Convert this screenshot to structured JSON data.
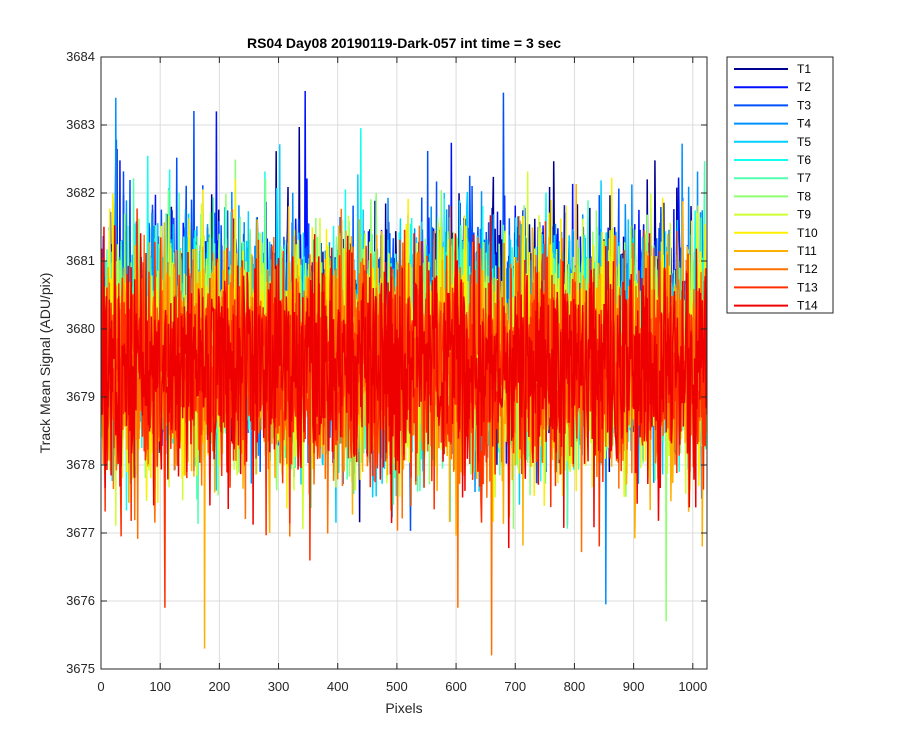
{
  "chart_data": {
    "type": "line",
    "title": "RS04 Day08 20190119-Dark-057 int time = 3 sec",
    "xlabel": "Pixels",
    "ylabel": "Track Mean Signal (ADU/pix)",
    "xlim": [
      0,
      1024
    ],
    "ylim": [
      3675,
      3684
    ],
    "xticks": [
      0,
      100,
      200,
      300,
      400,
      500,
      600,
      700,
      800,
      900,
      1000
    ],
    "yticks": [
      3675,
      3676,
      3677,
      3678,
      3679,
      3680,
      3681,
      3682,
      3683,
      3684
    ],
    "grid": true,
    "legend_position": "outside-top-right",
    "x_range_points": [
      1,
      1024
    ],
    "series_mean_approx": [
      3680.1,
      3680.0,
      3680.0,
      3679.9,
      3679.9,
      3679.8,
      3679.7,
      3679.7,
      3679.6,
      3679.6,
      3679.5,
      3679.5,
      3679.4,
      3679.4
    ],
    "series_spread_approx": 1.0,
    "series": [
      {
        "name": "T1",
        "color": "#00008f"
      },
      {
        "name": "T2",
        "color": "#0010ff"
      },
      {
        "name": "T3",
        "color": "#0050ff"
      },
      {
        "name": "T4",
        "color": "#0090ff"
      },
      {
        "name": "T5",
        "color": "#00cfff"
      },
      {
        "name": "T6",
        "color": "#10ffef"
      },
      {
        "name": "T7",
        "color": "#50ffaf"
      },
      {
        "name": "T8",
        "color": "#8fff70"
      },
      {
        "name": "T9",
        "color": "#cfff30"
      },
      {
        "name": "T10",
        "color": "#ffef00"
      },
      {
        "name": "T11",
        "color": "#ffaf00"
      },
      {
        "name": "T12",
        "color": "#ff7000"
      },
      {
        "name": "T13",
        "color": "#ff3000"
      },
      {
        "name": "T14",
        "color": "#ef0000"
      }
    ],
    "notable_extremes": [
      {
        "series": "T2",
        "x": 345,
        "y": 3683.5
      },
      {
        "series": "T4",
        "x": 25,
        "y": 3683.4
      },
      {
        "series": "T11",
        "x": 175,
        "y": 3675.3
      },
      {
        "series": "T12",
        "x": 660,
        "y": 3675.2
      },
      {
        "series": "T8",
        "x": 955,
        "y": 3675.7
      },
      {
        "series": "T13",
        "x": 108,
        "y": 3675.9
      },
      {
        "series": "T12",
        "x": 603,
        "y": 3675.9
      },
      {
        "series": "T4",
        "x": 853,
        "y": 3675.95
      }
    ]
  }
}
